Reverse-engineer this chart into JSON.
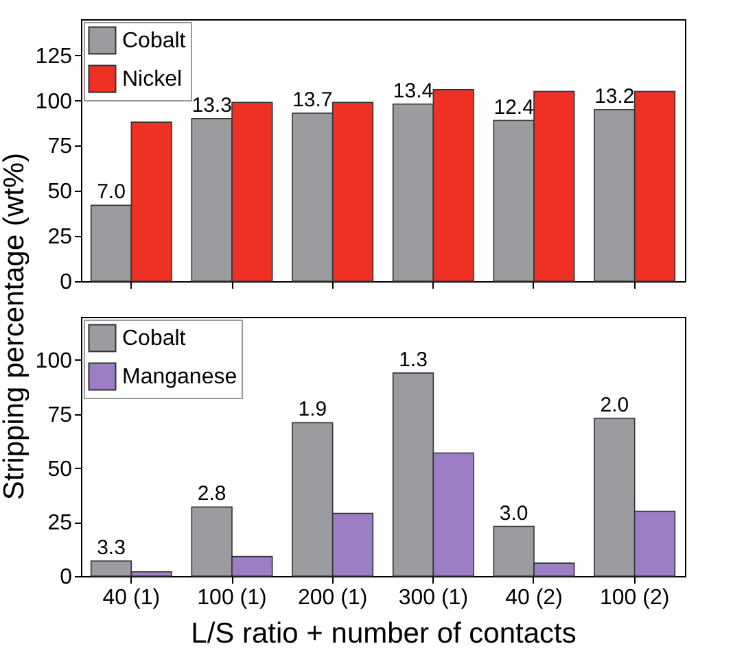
{
  "chart_data": [
    {
      "type": "bar",
      "ylabel": "Stripping percentage (wt%)",
      "categories": [
        "40 (1)",
        "100 (1)",
        "200 (1)",
        "300 (1)",
        "40 (2)",
        "100 (2)"
      ],
      "series": [
        {
          "name": "Cobalt",
          "color": "#9a9ca0",
          "values": [
            42,
            90,
            93,
            98,
            89,
            95
          ]
        },
        {
          "name": "Nickel",
          "color": "#ee3124",
          "values": [
            88,
            99,
            99,
            106,
            105,
            105
          ]
        }
      ],
      "ylim": [
        0,
        145
      ],
      "yticks": [
        0,
        25,
        50,
        75,
        100,
        125
      ],
      "legend": "top left",
      "tick_labels": "y",
      "grid": false,
      "annotations": [
        {
          "text": "7.0",
          "x": "40 (1)",
          "y": 42
        },
        {
          "text": "13.3",
          "x": "100 (1)",
          "y": 90
        },
        {
          "text": "13.7",
          "x": "200 (1)",
          "y": 93
        },
        {
          "text": "13.4",
          "x": "300 (1)",
          "y": 98
        },
        {
          "text": "12.4",
          "x": "40 (2)",
          "y": 89
        },
        {
          "text": "13.2",
          "x": "100 (2)",
          "y": 95
        }
      ]
    },
    {
      "type": "bar",
      "xlabel": "L/S ratio + number of contacts",
      "categories": [
        "40 (1)",
        "100 (1)",
        "200 (1)",
        "300 (1)",
        "40 (2)",
        "100 (2)"
      ],
      "series": [
        {
          "name": "Cobalt",
          "color": "#9a9ca0",
          "values": [
            7,
            32,
            71,
            94,
            23,
            73
          ]
        },
        {
          "name": "Manganese",
          "color": "#9b7ec4",
          "values": [
            2,
            9,
            29,
            57,
            6,
            30
          ]
        }
      ],
      "ylim": [
        0,
        120
      ],
      "yticks": [
        0,
        25,
        50,
        75,
        100
      ],
      "legend": "top left",
      "grid": false,
      "annotations": [
        {
          "text": "3.3",
          "x": "40 (1)",
          "y": 7
        },
        {
          "text": "2.8",
          "x": "100 (1)",
          "y": 32
        },
        {
          "text": "1.9",
          "x": "200 (1)",
          "y": 71
        },
        {
          "text": "1.3",
          "x": "300 (1)",
          "y": 94
        },
        {
          "text": "3.0",
          "x": "40 (2)",
          "y": 23
        },
        {
          "text": "2.0",
          "x": "100 (2)",
          "y": 73
        }
      ]
    }
  ]
}
